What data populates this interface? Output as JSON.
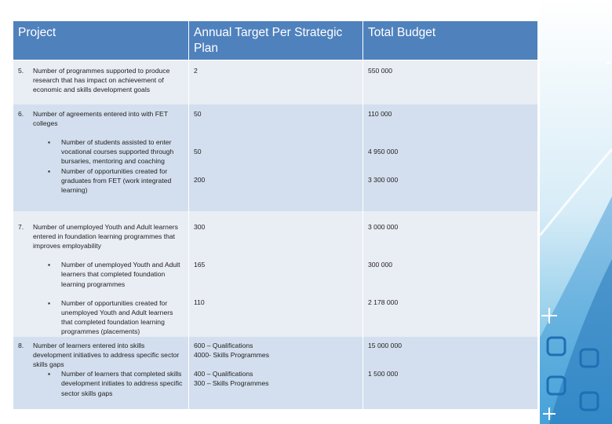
{
  "header": {
    "project": "Project",
    "target": "Annual Target Per Strategic Plan",
    "budget": "Total Budget"
  },
  "rows": {
    "r5": {
      "num": "5.",
      "text": "Number of programmes supported to produce research that has impact on achievement of economic and skills development goals",
      "target": "2",
      "budget": "550 000"
    },
    "r6": {
      "num": "6.",
      "text": "Number of agreements entered into with FET colleges",
      "target": "50",
      "budget": "110 000",
      "sub1": "Number of students assisted to enter vocational courses supported through bursaries, mentoring and coaching",
      "sub1_target": "50",
      "sub1_budget": "4 950 000",
      "sub2": "Number of opportunities created for graduates from FET (work integrated learning)",
      "sub2_target": "200",
      "sub2_budget": "3 300 000"
    },
    "r7": {
      "num": "7.",
      "text": "Number of unemployed Youth and Adult learners entered in foundation learning programmes that improves employability",
      "target": "300",
      "budget": "3 000 000",
      "sub1": "Number of unemployed Youth and Adult learners that completed foundation learning programmes",
      "sub1_target": "165",
      "sub1_budget": "300 000",
      "sub2": "Number of opportunities created for unemployed Youth and Adult learners that completed foundation learning programmes (placements)",
      "sub2_target": "110",
      "sub2_budget": "2 178 000"
    },
    "r8": {
      "num": "8.",
      "text": "Number of learners entered into skills development initiatives to address specific sector skills gaps",
      "target_l1": "600 – Qualifications",
      "target_l2": "4000- Skills Programmes",
      "budget": "15 000 000",
      "sub1": "Number of learners that completed skills development initiates to address specific sector skills gaps",
      "sub1_target_l1": "400 – Qualifications",
      "sub1_target_l2": "300 – Skills Programmes",
      "sub1_budget": "1 500 000"
    }
  },
  "bullet": "▪",
  "colors": {
    "header": "#4f81bd",
    "band_light": "#e9edf4",
    "band_dark": "#d3dfee",
    "decor_blue": "#1f6fb5"
  }
}
